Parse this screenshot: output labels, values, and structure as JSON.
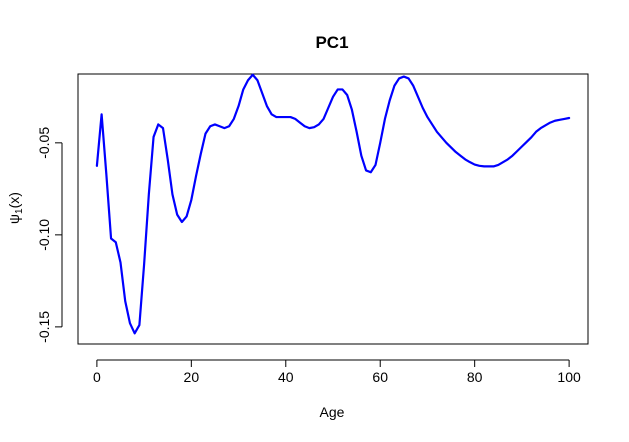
{
  "chart_data": {
    "type": "line",
    "title": "PC1",
    "xlabel": "Age",
    "ylabel_main": "ψ",
    "ylabel_sub": "1",
    "ylabel_tail": "(x)",
    "xlim": [
      -4,
      104
    ],
    "ylim": [
      -0.1593,
      -0.0126
    ],
    "x_ticks": [
      0,
      20,
      40,
      60,
      80,
      100
    ],
    "x_tick_labels": [
      "0",
      "20",
      "40",
      "60",
      "80",
      "100"
    ],
    "y_ticks": [
      -0.15,
      -0.1,
      -0.05
    ],
    "y_tick_labels": [
      "-0.15",
      "-0.10",
      "-0.05"
    ],
    "line_color": "#0000ff",
    "series": [
      {
        "x": [
          0,
          1,
          2,
          3,
          4,
          5,
          6,
          7,
          8,
          9,
          10,
          11,
          12,
          13,
          14,
          15,
          16,
          17,
          18,
          19,
          20,
          21,
          22,
          23,
          24,
          25,
          26,
          27,
          28,
          29,
          30,
          31,
          32,
          33,
          34,
          35,
          36,
          37,
          38,
          39,
          40,
          41,
          42,
          43,
          44,
          45,
          46,
          47,
          48,
          49,
          50,
          51,
          52,
          53,
          54,
          55,
          56,
          57,
          58,
          59,
          60,
          61,
          62,
          63,
          64,
          65,
          66,
          67,
          68,
          69,
          70,
          71,
          72,
          73,
          74,
          75,
          76,
          77,
          78,
          79,
          80,
          81,
          82,
          83,
          84,
          85,
          86,
          87,
          88,
          89,
          90,
          91,
          92,
          93,
          94,
          95,
          96,
          97,
          98,
          99,
          100
        ],
        "values": [
          -0.0625,
          -0.0345,
          -0.067,
          -0.102,
          -0.104,
          -0.115,
          -0.136,
          -0.148,
          -0.1535,
          -0.149,
          -0.116,
          -0.078,
          -0.0468,
          -0.04,
          -0.042,
          -0.059,
          -0.078,
          -0.089,
          -0.093,
          -0.09,
          -0.081,
          -0.068,
          -0.056,
          -0.045,
          -0.041,
          -0.04,
          -0.041,
          -0.042,
          -0.041,
          -0.037,
          -0.03,
          -0.021,
          -0.016,
          -0.013,
          -0.016,
          -0.023,
          -0.03,
          -0.0345,
          -0.036,
          -0.036,
          -0.036,
          -0.036,
          -0.037,
          -0.039,
          -0.041,
          -0.042,
          -0.0415,
          -0.04,
          -0.037,
          -0.031,
          -0.025,
          -0.021,
          -0.021,
          -0.024,
          -0.032,
          -0.044,
          -0.057,
          -0.065,
          -0.066,
          -0.062,
          -0.05,
          -0.037,
          -0.027,
          -0.019,
          -0.015,
          -0.014,
          -0.015,
          -0.019,
          -0.025,
          -0.031,
          -0.036,
          -0.04,
          -0.044,
          -0.047,
          -0.05,
          -0.0525,
          -0.055,
          -0.057,
          -0.059,
          -0.0605,
          -0.0618,
          -0.0625,
          -0.0628,
          -0.0628,
          -0.0628,
          -0.062,
          -0.0605,
          -0.059,
          -0.057,
          -0.0545,
          -0.052,
          -0.0495,
          -0.047,
          -0.044,
          -0.042,
          -0.0405,
          -0.039,
          -0.038,
          -0.0375,
          -0.037,
          -0.0365
        ]
      }
    ]
  }
}
